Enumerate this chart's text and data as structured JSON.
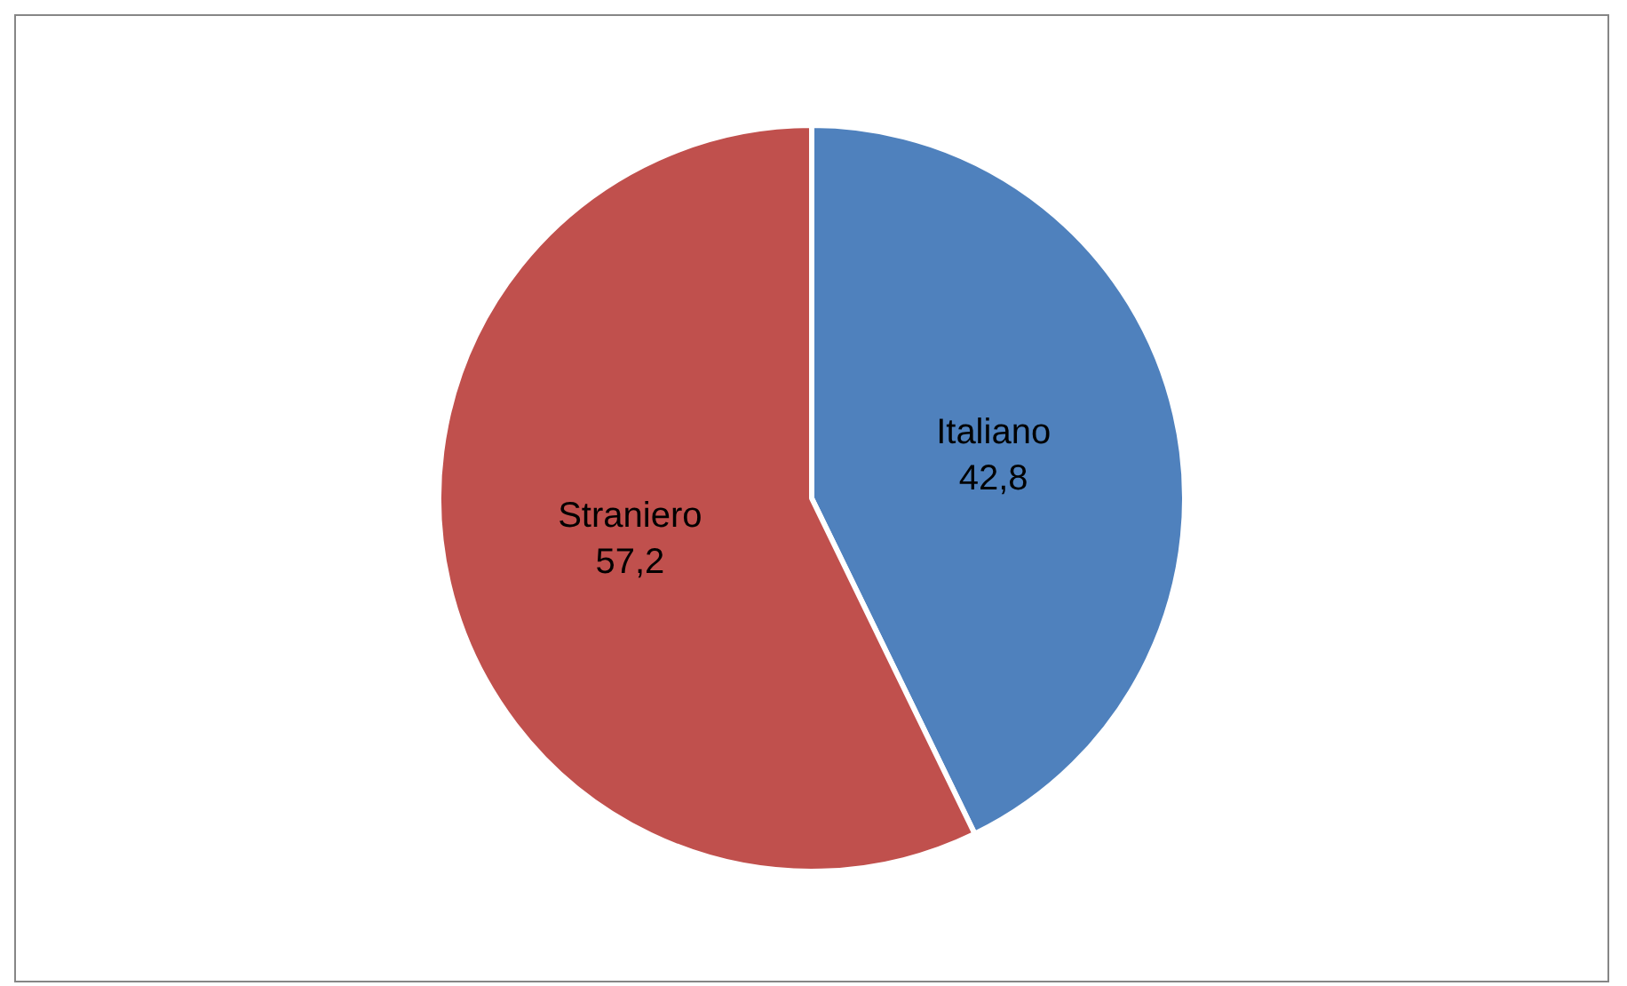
{
  "chart_data": {
    "type": "pie",
    "categories": [
      "Italiano",
      "Straniero"
    ],
    "values": [
      42.8,
      57.2
    ],
    "colors": [
      "#4f81bd",
      "#c0504d"
    ],
    "value_labels": [
      "42,8",
      "57,2"
    ],
    "legend": false
  }
}
